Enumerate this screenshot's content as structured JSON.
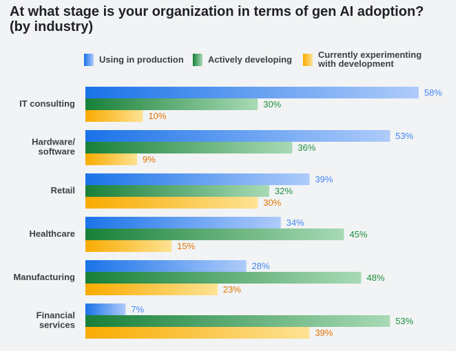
{
  "chart_data": {
    "type": "bar",
    "orientation": "horizontal",
    "title": "At what stage is your organization in terms of gen AI adoption?\n(by industry)",
    "categories": [
      "IT consulting",
      "Hardware/\nsoftware",
      "Retail",
      "Healthcare",
      "Manufacturing",
      "Financial\nservices"
    ],
    "series": [
      {
        "name": "Using in production",
        "color": "#1a73e8",
        "color_light": "#aecbfa",
        "label_color": "#4285f4",
        "values": [
          58,
          53,
          39,
          34,
          28,
          7
        ],
        "value_labels": [
          "58%",
          "53%",
          "39%",
          "34%",
          "28%",
          "7%"
        ]
      },
      {
        "name": "Actively developing",
        "color": "#188038",
        "color_light": "#a8dab5",
        "label_color": "#1e8e3e",
        "values": [
          30,
          36,
          32,
          45,
          48,
          53
        ],
        "value_labels": [
          "30%",
          "36%",
          "32%",
          "45%",
          "48%",
          "53%"
        ]
      },
      {
        "name": "Currently experimenting\nwith development",
        "color": "#f9ab00",
        "color_light": "#fde293",
        "label_color": "#e37400",
        "values": [
          10,
          9,
          30,
          15,
          23,
          39
        ],
        "value_labels": [
          "10%",
          "9%",
          "30%",
          "15%",
          "23%",
          "39%"
        ]
      }
    ]
  }
}
